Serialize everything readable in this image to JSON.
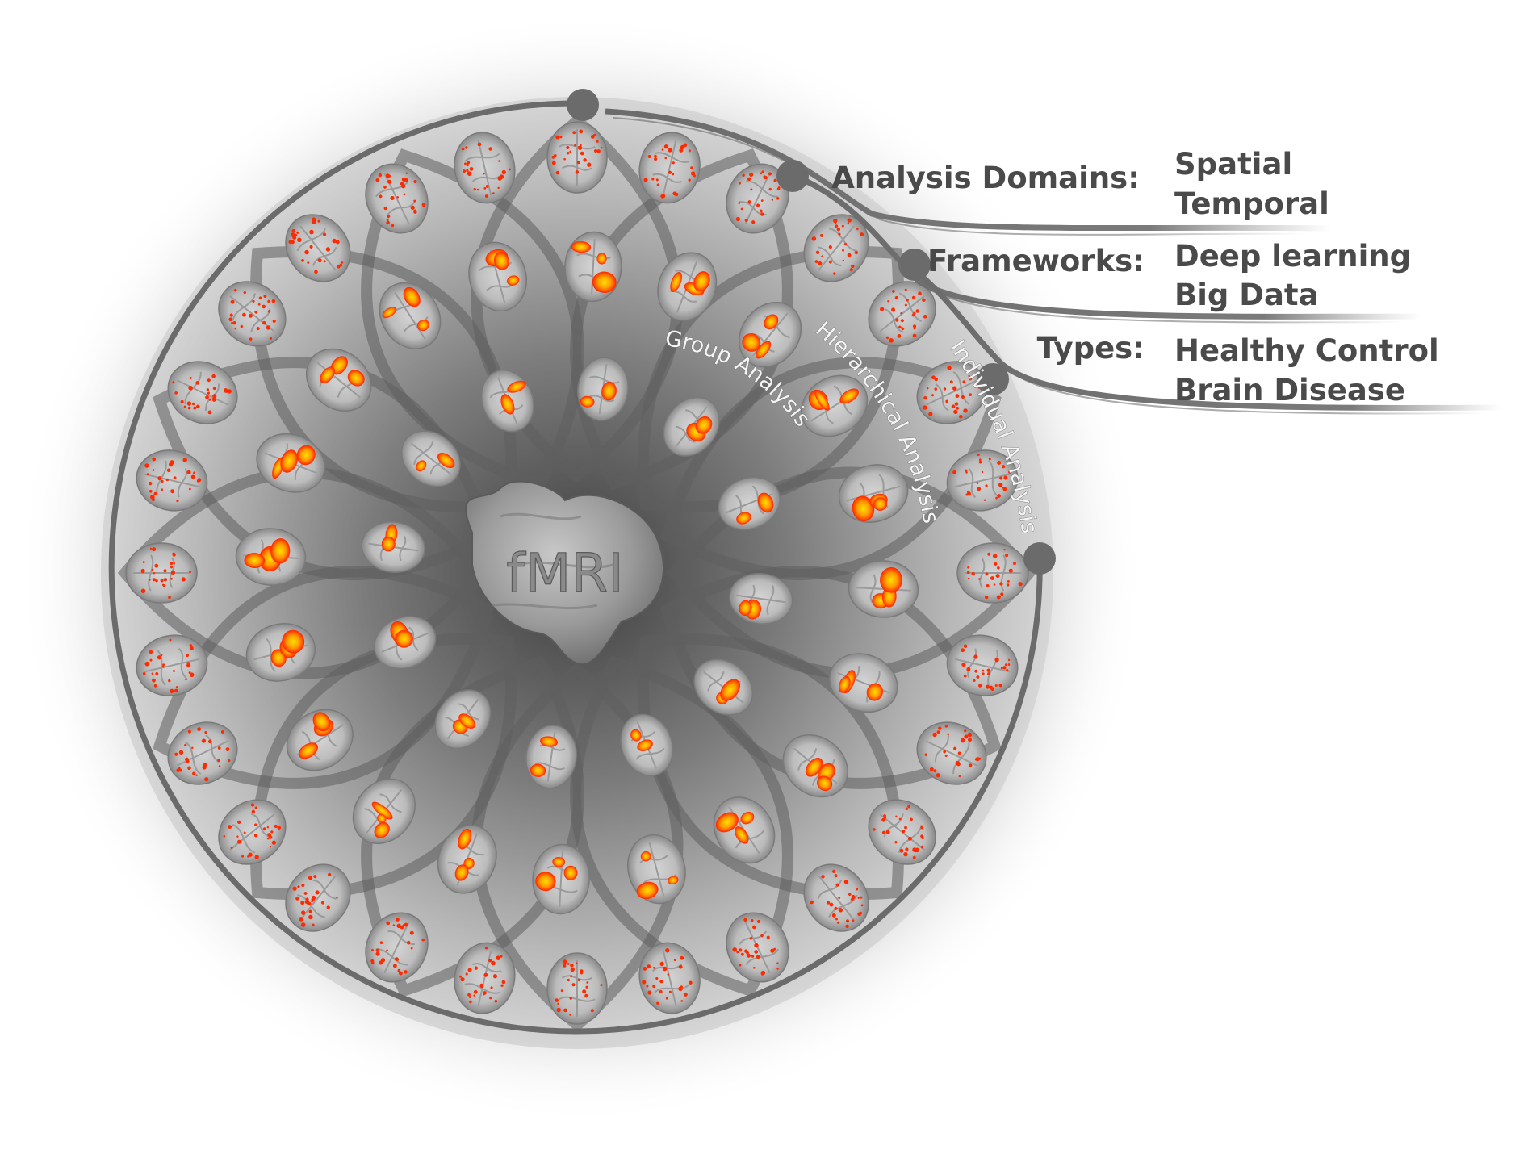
{
  "center": {
    "label": "fMRI"
  },
  "rings": [
    {
      "label": "Group Analysis"
    },
    {
      "label": "Hierarchical Analysis"
    },
    {
      "label": "Individual Analysis"
    }
  ],
  "categories": [
    {
      "heading": "Analysis Domains:",
      "items": [
        "Spatial",
        "Temporal"
      ]
    },
    {
      "heading": "Frameworks:",
      "items": [
        "Deep learning",
        "Big Data"
      ]
    },
    {
      "heading": "Types:",
      "items": [
        "Healthy Control",
        "Brain Disease"
      ]
    }
  ],
  "colors": {
    "accent_line": "#6b6b6b",
    "text": "#4a4a4a",
    "activation": "#ff2a00",
    "activation_hot": "#ffd800"
  }
}
